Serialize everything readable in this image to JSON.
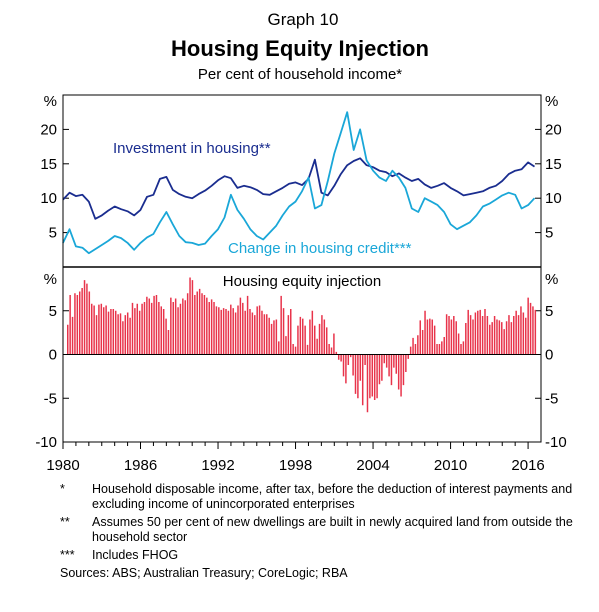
{
  "header": {
    "graph_number": "Graph 10",
    "title": "Housing Equity Injection",
    "subtitle": "Per cent of household income*"
  },
  "colors": {
    "investment": "#1a2d8f",
    "credit": "#1aa7d8",
    "equity": "#e8334a",
    "axis": "#000000",
    "grid": "#c8c8c8"
  },
  "chart_data": [
    {
      "type": "line",
      "title": "",
      "unit_label": "%",
      "ylim": [
        0,
        25
      ],
      "yticks": [
        5,
        10,
        15,
        20
      ],
      "xlim": [
        1980,
        2017
      ],
      "grid": false,
      "series": [
        {
          "name": "Investment in housing**",
          "x": [
            1980.0,
            1980.5,
            1981.0,
            1981.5,
            1982.0,
            1982.5,
            1983.0,
            1983.5,
            1984.0,
            1984.5,
            1985.0,
            1985.5,
            1986.0,
            1986.5,
            1987.0,
            1987.5,
            1988.0,
            1988.5,
            1989.0,
            1989.5,
            1990.0,
            1990.5,
            1991.0,
            1991.5,
            1992.0,
            1992.5,
            1993.0,
            1993.5,
            1994.0,
            1994.5,
            1995.0,
            1995.5,
            1996.0,
            1996.5,
            1997.0,
            1997.5,
            1998.0,
            1998.5,
            1999.0,
            1999.5,
            2000.0,
            2000.5,
            2001.0,
            2001.5,
            2002.0,
            2002.5,
            2003.0,
            2003.5,
            2004.0,
            2004.5,
            2005.0,
            2005.5,
            2006.0,
            2006.5,
            2007.0,
            2007.5,
            2008.0,
            2008.5,
            2009.0,
            2009.5,
            2010.0,
            2010.5,
            2011.0,
            2011.5,
            2012.0,
            2012.5,
            2013.0,
            2013.5,
            2014.0,
            2014.5,
            2015.0,
            2015.5,
            2016.0,
            2016.5
          ],
          "values": [
            9.8,
            10.8,
            10.3,
            10.5,
            9.5,
            7.0,
            7.5,
            8.2,
            8.8,
            8.4,
            8.1,
            7.5,
            8.3,
            10.2,
            10.5,
            12.8,
            13.1,
            11.2,
            10.6,
            10.2,
            10.0,
            10.6,
            11.1,
            11.8,
            12.6,
            13.2,
            12.9,
            11.5,
            11.8,
            11.6,
            11.2,
            10.6,
            10.5,
            11.0,
            11.5,
            12.1,
            12.3,
            11.9,
            12.8,
            15.6,
            10.8,
            10.4,
            11.8,
            13.5,
            14.8,
            15.4,
            15.8,
            14.8,
            14.5,
            14.0,
            13.8,
            13.2,
            13.6,
            13.0,
            12.5,
            12.8,
            12.0,
            11.5,
            11.8,
            12.2,
            11.5,
            11.0,
            10.4,
            10.6,
            10.8,
            11.0,
            11.5,
            11.8,
            12.5,
            13.5,
            14.0,
            14.2,
            15.2,
            14.6
          ]
        },
        {
          "name": "Change in housing credit***",
          "x": [
            1980.0,
            1980.5,
            1981.0,
            1981.5,
            1982.0,
            1982.5,
            1983.0,
            1983.5,
            1984.0,
            1984.5,
            1985.0,
            1985.5,
            1986.0,
            1986.5,
            1987.0,
            1987.5,
            1988.0,
            1988.5,
            1989.0,
            1989.5,
            1990.0,
            1990.5,
            1991.0,
            1991.5,
            1992.0,
            1992.5,
            1993.0,
            1993.5,
            1994.0,
            1994.5,
            1995.0,
            1995.5,
            1996.0,
            1996.5,
            1997.0,
            1997.5,
            1998.0,
            1998.5,
            1999.0,
            1999.5,
            2000.0,
            2000.5,
            2001.0,
            2001.5,
            2002.0,
            2002.5,
            2003.0,
            2003.5,
            2004.0,
            2004.5,
            2005.0,
            2005.5,
            2006.0,
            2006.5,
            2007.0,
            2007.5,
            2008.0,
            2008.5,
            2009.0,
            2009.5,
            2010.0,
            2010.5,
            2011.0,
            2011.5,
            2012.0,
            2012.5,
            2013.0,
            2013.5,
            2014.0,
            2014.5,
            2015.0,
            2015.5,
            2016.0,
            2016.5
          ],
          "values": [
            3.5,
            5.5,
            3.0,
            2.8,
            2.0,
            2.6,
            3.2,
            3.8,
            4.5,
            4.2,
            3.5,
            2.5,
            3.5,
            4.3,
            4.8,
            6.5,
            8.0,
            6.2,
            4.5,
            3.6,
            3.5,
            3.2,
            3.4,
            4.5,
            5.5,
            7.2,
            10.5,
            8.3,
            7.0,
            5.5,
            4.5,
            4.0,
            5.0,
            6.0,
            7.5,
            8.8,
            9.5,
            11.0,
            13.0,
            8.5,
            9.0,
            12.5,
            16.5,
            19.5,
            22.5,
            17.0,
            20.0,
            15.5,
            14.0,
            13.0,
            12.5,
            14.0,
            13.0,
            11.5,
            8.5,
            8.0,
            10.0,
            9.5,
            9.0,
            8.0,
            6.2,
            5.5,
            6.0,
            6.5,
            7.5,
            8.8,
            9.2,
            9.8,
            10.4,
            10.8,
            10.5,
            8.5,
            9.0,
            10.0
          ]
        }
      ]
    },
    {
      "type": "bar",
      "title": "Housing equity injection",
      "unit_label": "%",
      "ylim": [
        -10,
        10
      ],
      "yticks": [
        -10,
        -5,
        0,
        5
      ],
      "xlim": [
        1980,
        2017
      ],
      "xticks": [
        "1980",
        "1986",
        "1992",
        "1998",
        "2004",
        "2010",
        "2016"
      ],
      "grid": false,
      "series": [
        {
          "name": "Housing equity injection",
          "values": [
            3.4,
            6.8,
            4.3,
            7.0,
            6.8,
            7.2,
            7.6,
            8.5,
            8.1,
            7.2,
            5.8,
            5.6,
            4.5,
            5.7,
            5.8,
            5.4,
            5.6,
            4.9,
            5.2,
            5.2,
            5.0,
            4.6,
            4.7,
            3.8,
            4.5,
            4.8,
            4.2,
            5.9,
            5.3,
            5.8,
            5.0,
            5.8,
            6.0,
            6.6,
            6.4,
            5.9,
            6.7,
            6.8,
            6.0,
            5.5,
            5.2,
            4.1,
            2.8,
            6.5,
            6.0,
            6.4,
            5.4,
            5.8,
            6.4,
            6.2,
            7.0,
            8.8,
            8.5,
            6.8,
            7.2,
            7.5,
            7.0,
            6.8,
            6.5,
            6.0,
            6.3,
            6.0,
            5.5,
            5.4,
            5.1,
            5.3,
            5.2,
            5.0,
            5.7,
            5.3,
            4.8,
            5.6,
            6.5,
            5.9,
            5.0,
            6.7,
            5.2,
            4.8,
            4.5,
            5.5,
            5.6,
            5.0,
            4.6,
            4.6,
            4.2,
            3.5,
            3.9,
            4.0,
            1.5,
            6.7,
            5.3,
            2.1,
            4.5,
            5.2,
            1.2,
            0.9,
            3.3,
            4.3,
            4.1,
            3.3,
            1.1,
            4.0,
            5.0,
            3.3,
            1.8,
            3.5,
            4.5,
            4.0,
            3.1,
            1.2,
            0.8,
            2.4,
            0.3,
            -0.6,
            -0.8,
            -2.5,
            -3.3,
            -1.2,
            -0.3,
            -2.4,
            -4.5,
            -5.0,
            -3.0,
            -5.8,
            -1.2,
            -6.6,
            -5.0,
            -4.8,
            -5.2,
            -5.0,
            -3.4,
            -3.0,
            -1.0,
            -1.5,
            -2.5,
            -3.5,
            -1.5,
            -2.2,
            -4.0,
            -4.8,
            -3.5,
            -2.0,
            -0.5,
            0.9,
            1.9,
            1.2,
            2.2,
            3.9,
            2.8,
            5.0,
            4.0,
            4.1,
            4.0,
            3.3,
            1.2,
            1.2,
            1.5,
            2.0,
            4.6,
            4.4,
            4.0,
            4.4,
            3.8,
            2.4,
            1.2,
            1.5,
            3.6,
            5.1,
            4.5,
            4.0,
            4.8,
            5.0,
            5.1,
            4.4,
            5.2,
            4.4,
            3.4,
            3.7,
            4.4,
            4.0,
            3.9,
            3.7,
            2.9,
            3.8,
            4.5,
            3.7,
            4.4,
            5.0,
            4.5,
            5.5,
            4.8,
            4.2,
            6.5,
            5.9,
            5.5,
            5.1
          ]
        }
      ]
    }
  ],
  "footnotes": [
    {
      "mark": "*",
      "text": "Household disposable income, after tax, before the deduction of interest payments and excluding income of unincorporated enterprises"
    },
    {
      "mark": "**",
      "text": "Assumes 50 per cent of new dwellings are built in newly acquired land from outside the household sector"
    },
    {
      "mark": "***",
      "text": "Includes FHOG"
    }
  ],
  "sources": "Sources:   ABS; Australian Treasury; CoreLogic; RBA"
}
